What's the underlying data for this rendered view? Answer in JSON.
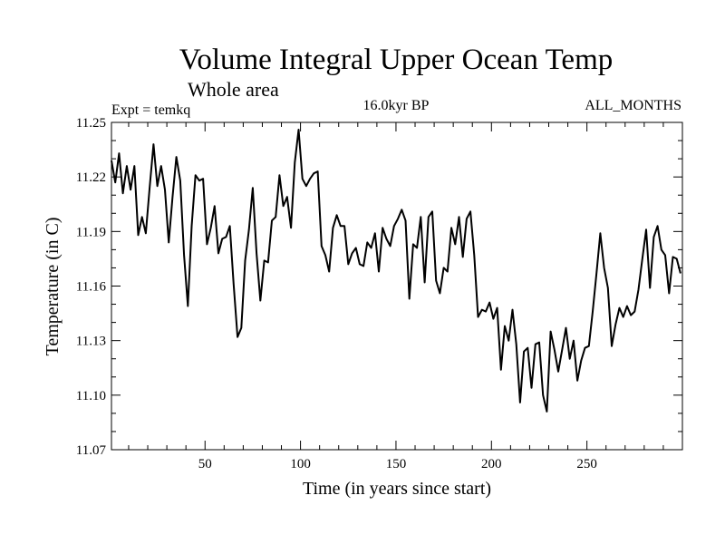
{
  "chart_data": {
    "type": "line",
    "title": "Volume Integral Upper Ocean Temp",
    "subtitle": "Whole area",
    "experiment_label": "Expt = temkq",
    "period_label": "16.0kyr BP",
    "months_label": "ALL_MONTHS",
    "xlabel": "Time (in years since start)",
    "ylabel": "Temperature (in C)",
    "xlim": [
      1,
      300
    ],
    "ylim": [
      11.07,
      11.25
    ],
    "xticks": [
      50,
      100,
      150,
      200,
      250
    ],
    "yticks": [
      11.07,
      11.1,
      11.13,
      11.16,
      11.19,
      11.22,
      11.25
    ],
    "xtick_labels": [
      "50",
      "100",
      "150",
      "200",
      "250"
    ],
    "ytick_labels": [
      "11.07",
      "11.10",
      "11.13",
      "11.16",
      "11.19",
      "11.22",
      "11.25"
    ],
    "grid": false,
    "series": [
      {
        "name": "temkq",
        "color": "#000000",
        "x": [
          1,
          3,
          5,
          7,
          9,
          11,
          13,
          15,
          17,
          19,
          21,
          23,
          25,
          27,
          29,
          31,
          33,
          35,
          37,
          39,
          41,
          43,
          45,
          47,
          49,
          51,
          53,
          55,
          57,
          59,
          61,
          63,
          65,
          67,
          69,
          71,
          73,
          75,
          77,
          79,
          81,
          83,
          85,
          87,
          89,
          91,
          93,
          95,
          97,
          99,
          101,
          103,
          105,
          107,
          109,
          111,
          113,
          115,
          117,
          119,
          121,
          123,
          125,
          127,
          129,
          131,
          133,
          135,
          137,
          139,
          141,
          143,
          145,
          147,
          149,
          151,
          153,
          155,
          157,
          159,
          161,
          163,
          165,
          167,
          169,
          171,
          173,
          175,
          177,
          179,
          181,
          183,
          185,
          187,
          189,
          191,
          193,
          195,
          197,
          199,
          201,
          203,
          205,
          207,
          209,
          211,
          213,
          215,
          217,
          219,
          221,
          223,
          225,
          227,
          229,
          231,
          233,
          235,
          237,
          239,
          241,
          243,
          245,
          247,
          249,
          251,
          253,
          255,
          257,
          259,
          261,
          263,
          265,
          267,
          269,
          271,
          273,
          275,
          277,
          279,
          281,
          283,
          285,
          287,
          289,
          291,
          293,
          295,
          297,
          299
        ],
        "y": [
          11.229,
          11.217,
          11.233,
          11.211,
          11.226,
          11.213,
          11.226,
          11.188,
          11.198,
          11.189,
          11.214,
          11.238,
          11.215,
          11.226,
          11.213,
          11.184,
          11.209,
          11.231,
          11.218,
          11.177,
          11.149,
          11.193,
          11.221,
          11.218,
          11.219,
          11.183,
          11.192,
          11.204,
          11.178,
          11.186,
          11.187,
          11.193,
          11.161,
          11.132,
          11.137,
          11.174,
          11.191,
          11.214,
          11.178,
          11.152,
          11.174,
          11.173,
          11.196,
          11.198,
          11.221,
          11.204,
          11.209,
          11.192,
          11.228,
          11.246,
          11.219,
          11.215,
          11.219,
          11.222,
          11.223,
          11.182,
          11.177,
          11.168,
          11.192,
          11.199,
          11.193,
          11.193,
          11.172,
          11.178,
          11.181,
          11.172,
          11.171,
          11.184,
          11.181,
          11.189,
          11.168,
          11.192,
          11.186,
          11.182,
          11.193,
          11.197,
          11.202,
          11.196,
          11.153,
          11.183,
          11.181,
          11.198,
          11.162,
          11.198,
          11.201,
          11.163,
          11.156,
          11.17,
          11.168,
          11.192,
          11.183,
          11.198,
          11.176,
          11.197,
          11.201,
          11.177,
          11.143,
          11.147,
          11.146,
          11.151,
          11.142,
          11.148,
          11.114,
          11.138,
          11.13,
          11.147,
          11.128,
          11.096,
          11.124,
          11.126,
          11.104,
          11.128,
          11.129,
          11.1,
          11.091,
          11.135,
          11.125,
          11.113,
          11.125,
          11.137,
          11.12,
          11.13,
          11.108,
          11.119,
          11.126,
          11.127,
          11.146,
          11.167,
          11.189,
          11.17,
          11.159,
          11.127,
          11.139,
          11.148,
          11.143,
          11.149,
          11.144,
          11.146,
          11.158,
          11.175,
          11.191,
          11.159,
          11.187,
          11.193,
          11.18,
          11.177,
          11.156,
          11.176,
          11.175,
          11.167
        ]
      }
    ]
  }
}
